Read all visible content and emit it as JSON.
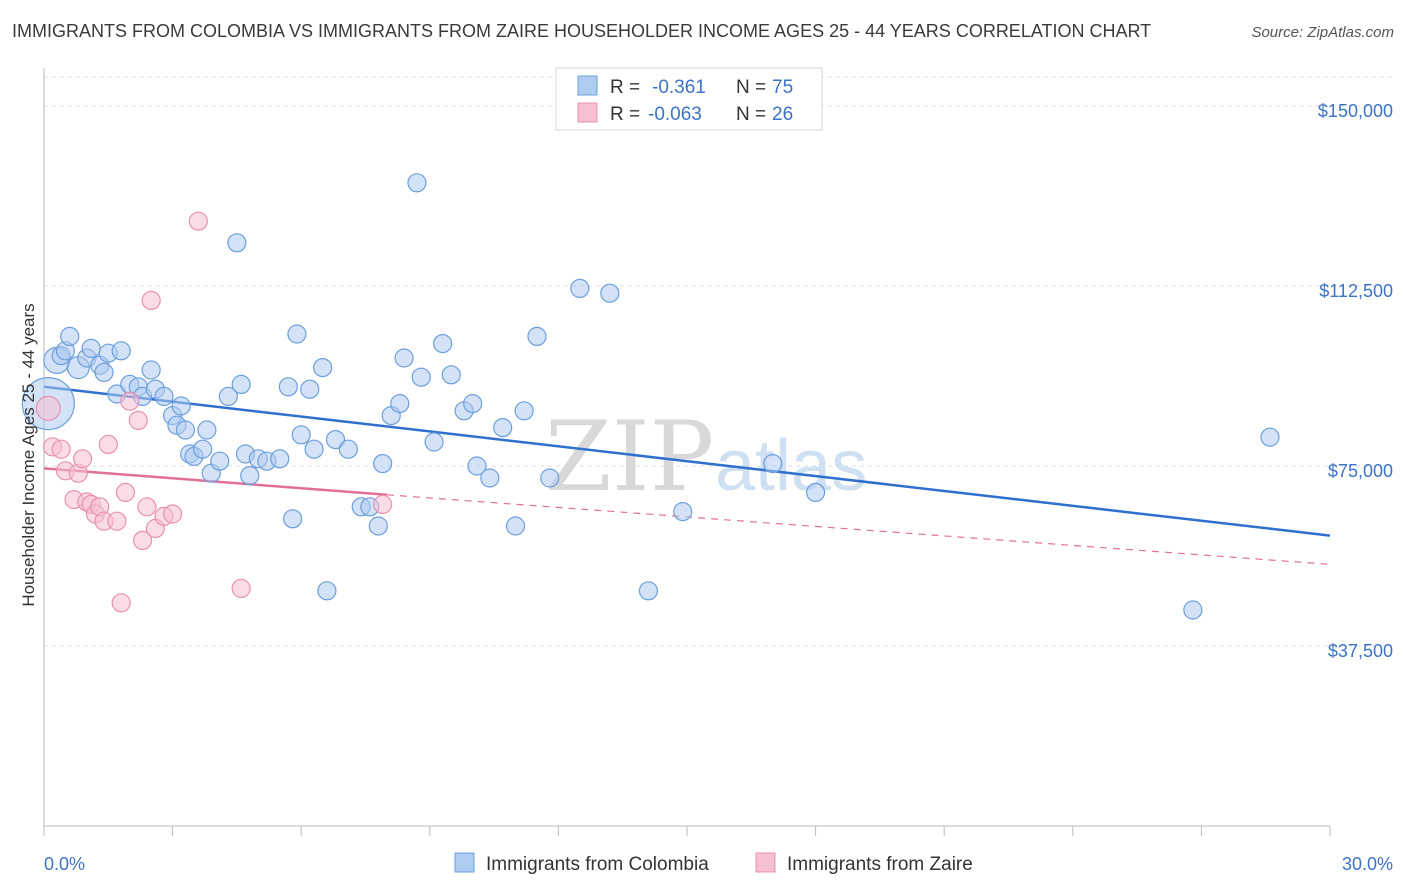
{
  "title": "IMMIGRANTS FROM COLOMBIA VS IMMIGRANTS FROM ZAIRE HOUSEHOLDER INCOME AGES 25 - 44 YEARS CORRELATION CHART",
  "source": "Source: ZipAtlas.com",
  "watermark": {
    "zip": "ZIP",
    "atlas": "atlas"
  },
  "colors": {
    "colombia_fill": "#aecbf0",
    "colombia_stroke": "#6c9fdc",
    "colombia_line": "#2f6fce",
    "zaire_fill": "#f6c0d3",
    "zaire_stroke": "#e891b0",
    "zaire_line": "#e0709a",
    "tick_text": "#3d73c6",
    "grid": "#dddddd"
  },
  "legend": {
    "rows": [
      {
        "r_label": "R =",
        "r_value": "-0.361",
        "n_label": "N =",
        "n_value": "75"
      },
      {
        "r_label": "R =",
        "r_value": "-0.063",
        "n_label": "N =",
        "n_value": "26"
      }
    ]
  },
  "bottom_legend": [
    "Immigrants from Colombia",
    "Immigrants from Zaire"
  ],
  "chart_data": {
    "type": "scatter",
    "ylabel": "Householder Income Ages 25 - 44 years",
    "xlim": [
      0,
      30
    ],
    "ylim": [
      0,
      155000
    ],
    "x_tick_labels": {
      "left": "0.0%",
      "right": "30.0%"
    },
    "y_ticks": [
      {
        "value": 37500,
        "label": "$37,500"
      },
      {
        "value": 75000,
        "label": "$75,000"
      },
      {
        "value": 112500,
        "label": "$112,500"
      },
      {
        "value": 150000,
        "label": "$150,000"
      }
    ],
    "series": [
      {
        "name": "Immigrants from Colombia",
        "trend": {
          "x": [
            0,
            30
          ],
          "y": [
            91500,
            60500
          ]
        },
        "points": [
          [
            0.1,
            88000,
            26
          ],
          [
            0.3,
            97000,
            13
          ],
          [
            0.4,
            98000,
            9
          ],
          [
            0.5,
            99000,
            9
          ],
          [
            0.6,
            102000,
            9
          ],
          [
            0.8,
            95500,
            11
          ],
          [
            1.0,
            97500,
            9
          ],
          [
            1.1,
            99500,
            9
          ],
          [
            1.3,
            96000,
            9
          ],
          [
            1.4,
            94500,
            9
          ],
          [
            1.5,
            98500,
            9
          ],
          [
            1.7,
            90000,
            9
          ],
          [
            1.8,
            99000,
            9
          ],
          [
            2.0,
            92000,
            9
          ],
          [
            2.2,
            91500,
            9
          ],
          [
            2.3,
            89500,
            9
          ],
          [
            2.5,
            95000,
            9
          ],
          [
            2.6,
            91000,
            9
          ],
          [
            2.8,
            89500,
            9
          ],
          [
            3.0,
            85500,
            9
          ],
          [
            3.1,
            83500,
            9
          ],
          [
            3.2,
            87500,
            9
          ],
          [
            3.3,
            82500,
            9
          ],
          [
            3.4,
            77500,
            9
          ],
          [
            3.5,
            77000,
            9
          ],
          [
            3.7,
            78500,
            9
          ],
          [
            3.8,
            82500,
            9
          ],
          [
            3.9,
            73500,
            9
          ],
          [
            4.1,
            76000,
            9
          ],
          [
            4.3,
            89500,
            9
          ],
          [
            4.5,
            121500,
            9
          ],
          [
            4.6,
            92000,
            9
          ],
          [
            4.7,
            77500,
            9
          ],
          [
            4.8,
            73000,
            9
          ],
          [
            5.0,
            76500,
            9
          ],
          [
            5.2,
            76000,
            9
          ],
          [
            5.5,
            76500,
            9
          ],
          [
            5.7,
            91500,
            9
          ],
          [
            5.8,
            64000,
            9
          ],
          [
            5.9,
            102500,
            9
          ],
          [
            6.0,
            81500,
            9
          ],
          [
            6.2,
            91000,
            9
          ],
          [
            6.3,
            78500,
            9
          ],
          [
            6.5,
            95500,
            9
          ],
          [
            6.6,
            49000,
            9
          ],
          [
            6.8,
            80500,
            9
          ],
          [
            7.1,
            78500,
            9
          ],
          [
            7.4,
            66500,
            9
          ],
          [
            7.6,
            66500,
            9
          ],
          [
            7.8,
            62500,
            9
          ],
          [
            7.9,
            75500,
            9
          ],
          [
            8.1,
            85500,
            9
          ],
          [
            8.3,
            88000,
            9
          ],
          [
            8.4,
            97500,
            9
          ],
          [
            8.7,
            134000,
            9
          ],
          [
            8.8,
            93500,
            9
          ],
          [
            9.1,
            80000,
            9
          ],
          [
            9.3,
            100500,
            9
          ],
          [
            9.5,
            94000,
            9
          ],
          [
            9.8,
            86500,
            9
          ],
          [
            10.0,
            88000,
            9
          ],
          [
            10.1,
            75000,
            9
          ],
          [
            10.4,
            72500,
            9
          ],
          [
            10.7,
            83000,
            9
          ],
          [
            11.0,
            62500,
            9
          ],
          [
            11.2,
            86500,
            9
          ],
          [
            11.5,
            102000,
            9
          ],
          [
            11.8,
            72500,
            9
          ],
          [
            12.5,
            112000,
            9
          ],
          [
            13.2,
            111000,
            9
          ],
          [
            14.1,
            49000,
            9
          ],
          [
            14.9,
            65500,
            9
          ],
          [
            17.0,
            75500,
            9
          ],
          [
            18.0,
            69500,
            9
          ],
          [
            26.8,
            45000,
            9
          ],
          [
            28.6,
            81000,
            9
          ]
        ]
      },
      {
        "name": "Immigrants from Zaire",
        "trend": {
          "x": [
            0,
            8
          ],
          "y": [
            74500,
            69000
          ]
        },
        "trend_dashed": {
          "x": [
            8,
            30
          ],
          "y": [
            69000,
            54500
          ]
        },
        "points": [
          [
            0.1,
            87000,
            12
          ],
          [
            0.2,
            79000,
            9
          ],
          [
            0.4,
            78500,
            9
          ],
          [
            0.5,
            74000,
            9
          ],
          [
            0.7,
            68000,
            9
          ],
          [
            0.8,
            73500,
            9
          ],
          [
            0.9,
            76500,
            9
          ],
          [
            1.0,
            67500,
            9
          ],
          [
            1.1,
            67000,
            9
          ],
          [
            1.2,
            65000,
            9
          ],
          [
            1.3,
            66500,
            9
          ],
          [
            1.4,
            63500,
            9
          ],
          [
            1.5,
            79500,
            9
          ],
          [
            1.7,
            63500,
            9
          ],
          [
            1.8,
            46500,
            9
          ],
          [
            1.9,
            69500,
            9
          ],
          [
            2.0,
            88500,
            9
          ],
          [
            2.2,
            84500,
            9
          ],
          [
            2.3,
            59500,
            9
          ],
          [
            2.4,
            66500,
            9
          ],
          [
            2.5,
            109500,
            9
          ],
          [
            2.6,
            62000,
            9
          ],
          [
            2.8,
            64500,
            9
          ],
          [
            3.0,
            65000,
            9
          ],
          [
            3.6,
            126000,
            9
          ],
          [
            4.6,
            49500,
            9
          ],
          [
            7.9,
            67000,
            9
          ]
        ]
      }
    ]
  }
}
